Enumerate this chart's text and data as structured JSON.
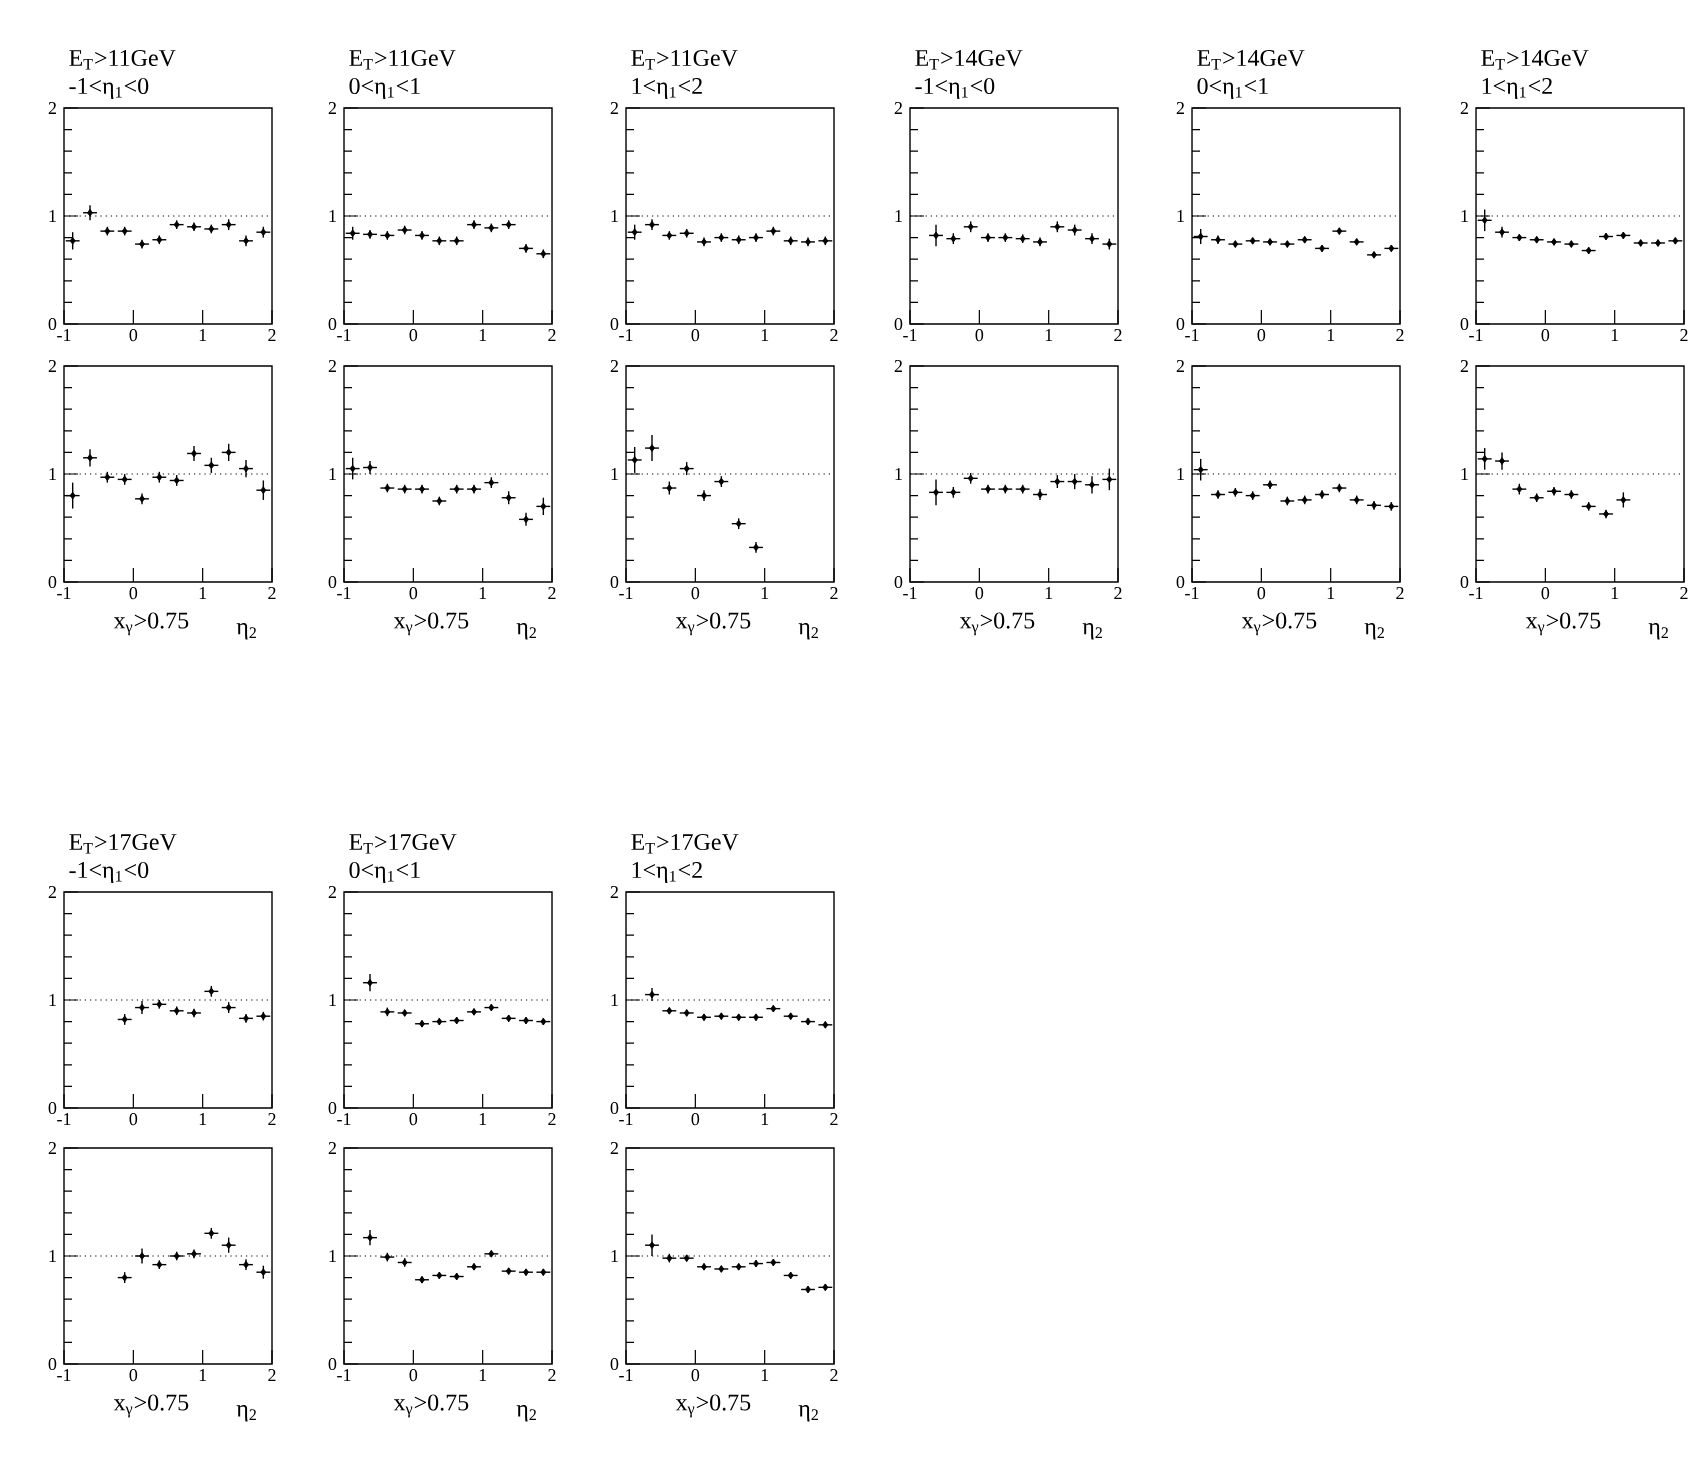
{
  "chart_data": [
    {
      "type": "scatter",
      "title": "E$_{T}$>11GeV",
      "subtitle": "-1<η$_{1}$<0",
      "x": [
        -0.875,
        -0.625,
        -0.375,
        -0.125,
        0.125,
        0.375,
        0.625,
        0.875,
        1.125,
        1.375,
        1.625,
        1.875
      ],
      "values": [
        0.77,
        1.03,
        0.86,
        0.86,
        0.74,
        0.78,
        0.92,
        0.9,
        0.88,
        0.92,
        0.77,
        0.85
      ],
      "errors": [
        0.08,
        0.07,
        0.04,
        0.04,
        0.04,
        0.04,
        0.04,
        0.04,
        0.04,
        0.05,
        0.05,
        0.05
      ],
      "xerrors": [
        0.1,
        0.1,
        0.1,
        0.1,
        0.1,
        0.1,
        0.1,
        0.1,
        0.1,
        0.1,
        0.1,
        0.1
      ],
      "xlim": [
        -1,
        2
      ],
      "ylim": [
        0,
        2
      ],
      "xticks": [
        -1,
        0,
        1,
        2
      ],
      "yticks": [
        0,
        1,
        2
      ],
      "color": "#000000",
      "marker": "diamond",
      "ref_lines": [
        {
          "axis": "y",
          "value": 1,
          "line_style": "dotted"
        }
      ]
    },
    {
      "type": "scatter",
      "title": "E$_{T}$>11GeV",
      "subtitle": "0<η$_{1}$<1",
      "x": [
        -0.875,
        -0.625,
        -0.375,
        -0.125,
        0.125,
        0.375,
        0.625,
        0.875,
        1.125,
        1.375,
        1.625,
        1.875
      ],
      "values": [
        0.84,
        0.83,
        0.82,
        0.87,
        0.82,
        0.77,
        0.77,
        0.92,
        0.89,
        0.92,
        0.7,
        0.65
      ],
      "errors": [
        0.06,
        0.04,
        0.04,
        0.04,
        0.04,
        0.04,
        0.04,
        0.04,
        0.04,
        0.04,
        0.04,
        0.04
      ],
      "xerrors": [
        0.1,
        0.1,
        0.1,
        0.1,
        0.1,
        0.1,
        0.1,
        0.1,
        0.1,
        0.1,
        0.1,
        0.1
      ],
      "xlim": [
        -1,
        2
      ],
      "ylim": [
        0,
        2
      ],
      "xticks": [
        -1,
        0,
        1,
        2
      ],
      "yticks": [
        0,
        1,
        2
      ],
      "color": "#000000",
      "marker": "diamond",
      "ref_lines": [
        {
          "axis": "y",
          "value": 1,
          "line_style": "dotted"
        }
      ]
    },
    {
      "type": "scatter",
      "title": "E$_{T}$>11GeV",
      "subtitle": "1<η$_{1}$<2",
      "x": [
        -0.875,
        -0.625,
        -0.375,
        -0.125,
        0.125,
        0.375,
        0.625,
        0.875,
        1.125,
        1.375,
        1.625,
        1.875
      ],
      "values": [
        0.85,
        0.92,
        0.82,
        0.84,
        0.76,
        0.8,
        0.78,
        0.8,
        0.86,
        0.77,
        0.76,
        0.77
      ],
      "errors": [
        0.07,
        0.05,
        0.04,
        0.04,
        0.04,
        0.04,
        0.04,
        0.04,
        0.04,
        0.04,
        0.04,
        0.04
      ],
      "xerrors": [
        0.1,
        0.1,
        0.1,
        0.1,
        0.1,
        0.1,
        0.1,
        0.1,
        0.1,
        0.1,
        0.1,
        0.1
      ],
      "xlim": [
        -1,
        2
      ],
      "ylim": [
        0,
        2
      ],
      "xticks": [
        -1,
        0,
        1,
        2
      ],
      "yticks": [
        0,
        1,
        2
      ],
      "color": "#000000",
      "marker": "diamond",
      "ref_lines": [
        {
          "axis": "y",
          "value": 1,
          "line_style": "dotted"
        }
      ]
    },
    {
      "type": "scatter",
      "title": "E$_{T}$>14GeV",
      "subtitle": "-1<η$_{1}$<0",
      "x": [
        -0.625,
        -0.375,
        -0.125,
        0.125,
        0.375,
        0.625,
        0.875,
        1.125,
        1.375,
        1.625,
        1.875
      ],
      "values": [
        0.82,
        0.79,
        0.9,
        0.8,
        0.8,
        0.79,
        0.76,
        0.9,
        0.87,
        0.79,
        0.74
      ],
      "errors": [
        0.1,
        0.05,
        0.05,
        0.04,
        0.04,
        0.04,
        0.04,
        0.05,
        0.05,
        0.05,
        0.05
      ],
      "xerrors": [
        0.1,
        0.1,
        0.1,
        0.1,
        0.1,
        0.1,
        0.1,
        0.1,
        0.1,
        0.1,
        0.1
      ],
      "xlim": [
        -1,
        2
      ],
      "ylim": [
        0,
        2
      ],
      "xticks": [
        -1,
        0,
        1,
        2
      ],
      "yticks": [
        0,
        1,
        2
      ],
      "color": "#000000",
      "marker": "diamond",
      "ref_lines": [
        {
          "axis": "y",
          "value": 1,
          "line_style": "dotted"
        }
      ]
    },
    {
      "type": "scatter",
      "title": "E$_{T}$>14GeV",
      "subtitle": "0<η$_{1}$<1",
      "x": [
        -0.875,
        -0.625,
        -0.375,
        -0.125,
        0.125,
        0.375,
        0.625,
        0.875,
        1.125,
        1.375,
        1.625,
        1.875
      ],
      "values": [
        0.81,
        0.78,
        0.74,
        0.77,
        0.76,
        0.74,
        0.78,
        0.7,
        0.86,
        0.76,
        0.64,
        0.7
      ],
      "errors": [
        0.07,
        0.04,
        0.03,
        0.03,
        0.03,
        0.03,
        0.03,
        0.03,
        0.03,
        0.03,
        0.03,
        0.03
      ],
      "xerrors": [
        0.1,
        0.1,
        0.1,
        0.1,
        0.1,
        0.1,
        0.1,
        0.1,
        0.1,
        0.1,
        0.1,
        0.1
      ],
      "xlim": [
        -1,
        2
      ],
      "ylim": [
        0,
        2
      ],
      "xticks": [
        -1,
        0,
        1,
        2
      ],
      "yticks": [
        0,
        1,
        2
      ],
      "color": "#000000",
      "marker": "diamond",
      "ref_lines": [
        {
          "axis": "y",
          "value": 1,
          "line_style": "dotted"
        }
      ]
    },
    {
      "type": "scatter",
      "title": "E$_{T}$>14GeV",
      "subtitle": "1<η$_{1}$<2",
      "x": [
        -0.875,
        -0.625,
        -0.375,
        -0.125,
        0.125,
        0.375,
        0.625,
        0.875,
        1.125,
        1.375,
        1.625,
        1.875
      ],
      "values": [
        0.96,
        0.85,
        0.8,
        0.78,
        0.76,
        0.74,
        0.68,
        0.81,
        0.82,
        0.75,
        0.75,
        0.77
      ],
      "errors": [
        0.1,
        0.05,
        0.03,
        0.03,
        0.03,
        0.03,
        0.03,
        0.03,
        0.03,
        0.03,
        0.03,
        0.03
      ],
      "xerrors": [
        0.1,
        0.1,
        0.1,
        0.1,
        0.1,
        0.1,
        0.1,
        0.1,
        0.1,
        0.1,
        0.1,
        0.1
      ],
      "xlim": [
        -1,
        2
      ],
      "ylim": [
        0,
        2
      ],
      "xticks": [
        -1,
        0,
        1,
        2
      ],
      "yticks": [
        0,
        1,
        2
      ],
      "color": "#000000",
      "marker": "diamond",
      "ref_lines": [
        {
          "axis": "y",
          "value": 1,
          "line_style": "dotted"
        }
      ]
    },
    {
      "type": "scatter",
      "xlabel": "η$_{2}$",
      "annotations": [
        "x$_{γ}$>0.75"
      ],
      "x": [
        -0.875,
        -0.625,
        -0.375,
        -0.125,
        0.125,
        0.375,
        0.625,
        0.875,
        1.125,
        1.375,
        1.625,
        1.875
      ],
      "values": [
        0.8,
        1.15,
        0.97,
        0.95,
        0.77,
        0.97,
        0.94,
        1.19,
        1.08,
        1.2,
        1.05,
        0.85
      ],
      "errors": [
        0.12,
        0.08,
        0.05,
        0.05,
        0.05,
        0.05,
        0.05,
        0.07,
        0.07,
        0.08,
        0.08,
        0.09
      ],
      "xerrors": [
        0.1,
        0.1,
        0.1,
        0.1,
        0.1,
        0.1,
        0.1,
        0.1,
        0.1,
        0.1,
        0.1,
        0.1
      ],
      "xlim": [
        -1,
        2
      ],
      "ylim": [
        0,
        2
      ],
      "xticks": [
        -1,
        0,
        1,
        2
      ],
      "yticks": [
        0,
        1,
        2
      ],
      "color": "#000000",
      "marker": "diamond",
      "ref_lines": [
        {
          "axis": "y",
          "value": 1,
          "line_style": "dotted"
        }
      ]
    },
    {
      "type": "scatter",
      "xlabel": "η$_{2}$",
      "annotations": [
        "x$_{γ}$>0.75"
      ],
      "x": [
        -0.875,
        -0.625,
        -0.375,
        -0.125,
        0.125,
        0.375,
        0.625,
        0.875,
        1.125,
        1.375,
        1.625,
        1.875
      ],
      "values": [
        1.05,
        1.06,
        0.87,
        0.86,
        0.86,
        0.75,
        0.86,
        0.86,
        0.92,
        0.78,
        0.58,
        0.7
      ],
      "errors": [
        0.1,
        0.06,
        0.04,
        0.04,
        0.04,
        0.04,
        0.04,
        0.04,
        0.05,
        0.06,
        0.06,
        0.08
      ],
      "xerrors": [
        0.1,
        0.1,
        0.1,
        0.1,
        0.1,
        0.1,
        0.1,
        0.1,
        0.1,
        0.1,
        0.1,
        0.1
      ],
      "xlim": [
        -1,
        2
      ],
      "ylim": [
        0,
        2
      ],
      "xticks": [
        -1,
        0,
        1,
        2
      ],
      "yticks": [
        0,
        1,
        2
      ],
      "color": "#000000",
      "marker": "diamond",
      "ref_lines": [
        {
          "axis": "y",
          "value": 1,
          "line_style": "dotted"
        }
      ]
    },
    {
      "type": "scatter",
      "xlabel": "η$_{2}$",
      "annotations": [
        "x$_{γ}$>0.75"
      ],
      "x": [
        -0.875,
        -0.625,
        -0.375,
        -0.125,
        0.125,
        0.375,
        0.625,
        0.875
      ],
      "values": [
        1.13,
        1.24,
        0.87,
        1.05,
        0.8,
        0.93,
        0.54,
        0.32
      ],
      "errors": [
        0.12,
        0.12,
        0.06,
        0.06,
        0.05,
        0.05,
        0.05,
        0.05
      ],
      "xerrors": [
        0.1,
        0.1,
        0.1,
        0.1,
        0.1,
        0.1,
        0.1,
        0.1
      ],
      "xlim": [
        -1,
        2
      ],
      "ylim": [
        0,
        2
      ],
      "xticks": [
        -1,
        0,
        1,
        2
      ],
      "yticks": [
        0,
        1,
        2
      ],
      "color": "#000000",
      "marker": "diamond",
      "ref_lines": [
        {
          "axis": "y",
          "value": 1,
          "line_style": "dotted"
        }
      ]
    },
    {
      "type": "scatter",
      "xlabel": "η$_{2}$",
      "annotations": [
        "x$_{γ}$>0.75"
      ],
      "x": [
        -0.625,
        -0.375,
        -0.125,
        0.125,
        0.375,
        0.625,
        0.875,
        1.125,
        1.375,
        1.625,
        1.875
      ],
      "values": [
        0.83,
        0.83,
        0.96,
        0.86,
        0.86,
        0.86,
        0.81,
        0.93,
        0.93,
        0.9,
        0.95
      ],
      "errors": [
        0.12,
        0.05,
        0.05,
        0.04,
        0.04,
        0.04,
        0.05,
        0.06,
        0.07,
        0.08,
        0.1
      ],
      "xerrors": [
        0.1,
        0.1,
        0.1,
        0.1,
        0.1,
        0.1,
        0.1,
        0.1,
        0.1,
        0.1,
        0.1
      ],
      "xlim": [
        -1,
        2
      ],
      "ylim": [
        0,
        2
      ],
      "xticks": [
        -1,
        0,
        1,
        2
      ],
      "yticks": [
        0,
        1,
        2
      ],
      "color": "#000000",
      "marker": "diamond",
      "ref_lines": [
        {
          "axis": "y",
          "value": 1,
          "line_style": "dotted"
        }
      ]
    },
    {
      "type": "scatter",
      "xlabel": "η$_{2}$",
      "annotations": [
        "x$_{γ}$>0.75"
      ],
      "x": [
        -0.875,
        -0.625,
        -0.375,
        -0.125,
        0.125,
        0.375,
        0.625,
        0.875,
        1.125,
        1.375,
        1.625,
        1.875
      ],
      "values": [
        1.04,
        0.81,
        0.83,
        0.8,
        0.9,
        0.75,
        0.76,
        0.81,
        0.87,
        0.76,
        0.71,
        0.7
      ],
      "errors": [
        0.1,
        0.04,
        0.04,
        0.04,
        0.04,
        0.04,
        0.04,
        0.04,
        0.04,
        0.04,
        0.04,
        0.04
      ],
      "xerrors": [
        0.1,
        0.1,
        0.1,
        0.1,
        0.1,
        0.1,
        0.1,
        0.1,
        0.1,
        0.1,
        0.1,
        0.1
      ],
      "xlim": [
        -1,
        2
      ],
      "ylim": [
        0,
        2
      ],
      "xticks": [
        -1,
        0,
        1,
        2
      ],
      "yticks": [
        0,
        1,
        2
      ],
      "color": "#000000",
      "marker": "diamond",
      "ref_lines": [
        {
          "axis": "y",
          "value": 1,
          "line_style": "dotted"
        }
      ]
    },
    {
      "type": "scatter",
      "xlabel": "η$_{2}$",
      "annotations": [
        "x$_{γ}$>0.75"
      ],
      "x": [
        -0.875,
        -0.625,
        -0.375,
        -0.125,
        0.125,
        0.375,
        0.625,
        0.875,
        1.125
      ],
      "values": [
        1.14,
        1.12,
        0.86,
        0.78,
        0.84,
        0.81,
        0.7,
        0.63,
        0.76
      ],
      "errors": [
        0.1,
        0.08,
        0.05,
        0.04,
        0.04,
        0.04,
        0.04,
        0.04,
        0.07
      ],
      "xerrors": [
        0.1,
        0.1,
        0.1,
        0.1,
        0.1,
        0.1,
        0.1,
        0.1,
        0.1
      ],
      "xlim": [
        -1,
        2
      ],
      "ylim": [
        0,
        2
      ],
      "xticks": [
        -1,
        0,
        1,
        2
      ],
      "yticks": [
        0,
        1,
        2
      ],
      "color": "#000000",
      "marker": "diamond",
      "ref_lines": [
        {
          "axis": "y",
          "value": 1,
          "line_style": "dotted"
        }
      ]
    },
    {
      "type": "scatter",
      "title": "E$_{T}$>17GeV",
      "subtitle": "-1<η$_{1}$<0",
      "x": [
        -0.125,
        0.125,
        0.375,
        0.625,
        0.875,
        1.125,
        1.375,
        1.625,
        1.875
      ],
      "values": [
        0.82,
        0.93,
        0.96,
        0.9,
        0.88,
        1.08,
        0.93,
        0.83,
        0.85
      ],
      "errors": [
        0.05,
        0.06,
        0.04,
        0.04,
        0.04,
        0.05,
        0.05,
        0.04,
        0.04
      ],
      "xerrors": [
        0.1,
        0.1,
        0.1,
        0.1,
        0.1,
        0.1,
        0.1,
        0.1,
        0.1
      ],
      "xlim": [
        -1,
        2
      ],
      "ylim": [
        0,
        2
      ],
      "xticks": [
        -1,
        0,
        1,
        2
      ],
      "yticks": [
        0,
        1,
        2
      ],
      "color": "#000000",
      "marker": "diamond",
      "ref_lines": [
        {
          "axis": "y",
          "value": 1,
          "line_style": "dotted"
        }
      ]
    },
    {
      "type": "scatter",
      "title": "E$_{T}$>17GeV",
      "subtitle": "0<η$_{1}$<1",
      "x": [
        -0.625,
        -0.375,
        -0.125,
        0.125,
        0.375,
        0.625,
        0.875,
        1.125,
        1.375,
        1.625,
        1.875
      ],
      "values": [
        1.16,
        0.89,
        0.88,
        0.78,
        0.8,
        0.81,
        0.89,
        0.93,
        0.83,
        0.81,
        0.8
      ],
      "errors": [
        0.08,
        0.04,
        0.03,
        0.03,
        0.03,
        0.03,
        0.03,
        0.03,
        0.03,
        0.03,
        0.03
      ],
      "xerrors": [
        0.1,
        0.1,
        0.1,
        0.1,
        0.1,
        0.1,
        0.1,
        0.1,
        0.1,
        0.1,
        0.1
      ],
      "xlim": [
        -1,
        2
      ],
      "ylim": [
        0,
        2
      ],
      "xticks": [
        -1,
        0,
        1,
        2
      ],
      "yticks": [
        0,
        1,
        2
      ],
      "color": "#000000",
      "marker": "diamond",
      "ref_lines": [
        {
          "axis": "y",
          "value": 1,
          "line_style": "dotted"
        }
      ]
    },
    {
      "type": "scatter",
      "title": "E$_{T}$>17GeV",
      "subtitle": "1<η$_{1}$<2",
      "x": [
        -0.625,
        -0.375,
        -0.125,
        0.125,
        0.375,
        0.625,
        0.875,
        1.125,
        1.375,
        1.625,
        1.875
      ],
      "values": [
        1.05,
        0.9,
        0.88,
        0.84,
        0.85,
        0.84,
        0.84,
        0.92,
        0.85,
        0.8,
        0.77
      ],
      "errors": [
        0.06,
        0.03,
        0.03,
        0.03,
        0.03,
        0.03,
        0.03,
        0.03,
        0.03,
        0.03,
        0.03
      ],
      "xerrors": [
        0.1,
        0.1,
        0.1,
        0.1,
        0.1,
        0.1,
        0.1,
        0.1,
        0.1,
        0.1,
        0.1
      ],
      "xlim": [
        -1,
        2
      ],
      "ylim": [
        0,
        2
      ],
      "xticks": [
        -1,
        0,
        1,
        2
      ],
      "yticks": [
        0,
        1,
        2
      ],
      "color": "#000000",
      "marker": "diamond",
      "ref_lines": [
        {
          "axis": "y",
          "value": 1,
          "line_style": "dotted"
        }
      ]
    },
    {
      "type": "scatter",
      "xlabel": "η$_{2}$",
      "annotations": [
        "x$_{γ}$>0.75"
      ],
      "x": [
        -0.125,
        0.125,
        0.375,
        0.625,
        0.875,
        1.125,
        1.375,
        1.625,
        1.875
      ],
      "values": [
        0.8,
        1.0,
        0.92,
        1.0,
        1.02,
        1.21,
        1.1,
        0.92,
        0.85
      ],
      "errors": [
        0.05,
        0.07,
        0.04,
        0.04,
        0.04,
        0.05,
        0.07,
        0.05,
        0.06
      ],
      "xerrors": [
        0.1,
        0.1,
        0.1,
        0.1,
        0.1,
        0.1,
        0.1,
        0.1,
        0.1
      ],
      "xlim": [
        -1,
        2
      ],
      "ylim": [
        0,
        2
      ],
      "xticks": [
        -1,
        0,
        1,
        2
      ],
      "yticks": [
        0,
        1,
        2
      ],
      "color": "#000000",
      "marker": "diamond",
      "ref_lines": [
        {
          "axis": "y",
          "value": 1,
          "line_style": "dotted"
        }
      ]
    },
    {
      "type": "scatter",
      "xlabel": "η$_{2}$",
      "annotations": [
        "x$_{γ}$>0.75"
      ],
      "x": [
        -0.625,
        -0.375,
        -0.125,
        0.125,
        0.375,
        0.625,
        0.875,
        1.125,
        1.375,
        1.625,
        1.875
      ],
      "values": [
        1.17,
        0.99,
        0.94,
        0.78,
        0.82,
        0.81,
        0.9,
        1.02,
        0.86,
        0.85,
        0.85
      ],
      "errors": [
        0.07,
        0.04,
        0.04,
        0.03,
        0.03,
        0.03,
        0.03,
        0.03,
        0.03,
        0.03,
        0.03
      ],
      "xerrors": [
        0.1,
        0.1,
        0.1,
        0.1,
        0.1,
        0.1,
        0.1,
        0.1,
        0.1,
        0.1,
        0.1
      ],
      "xlim": [
        -1,
        2
      ],
      "ylim": [
        0,
        2
      ],
      "xticks": [
        -1,
        0,
        1,
        2
      ],
      "yticks": [
        0,
        1,
        2
      ],
      "color": "#000000",
      "marker": "diamond",
      "ref_lines": [
        {
          "axis": "y",
          "value": 1,
          "line_style": "dotted"
        }
      ]
    },
    {
      "type": "scatter",
      "xlabel": "η$_{2}$",
      "annotations": [
        "x$_{γ}$>0.75"
      ],
      "x": [
        -0.625,
        -0.375,
        -0.125,
        0.125,
        0.375,
        0.625,
        0.875,
        1.125,
        1.375,
        1.625,
        1.875
      ],
      "values": [
        1.1,
        0.98,
        0.98,
        0.9,
        0.88,
        0.9,
        0.93,
        0.94,
        0.82,
        0.69,
        0.71
      ],
      "errors": [
        0.1,
        0.04,
        0.03,
        0.03,
        0.03,
        0.03,
        0.03,
        0.03,
        0.03,
        0.03,
        0.03
      ],
      "xerrors": [
        0.1,
        0.1,
        0.1,
        0.1,
        0.1,
        0.1,
        0.1,
        0.1,
        0.1,
        0.1,
        0.1
      ],
      "xlim": [
        -1,
        2
      ],
      "ylim": [
        0,
        2
      ],
      "xticks": [
        -1,
        0,
        1,
        2
      ],
      "yticks": [
        0,
        1,
        2
      ],
      "color": "#000000",
      "marker": "diamond",
      "ref_lines": [
        {
          "axis": "y",
          "value": 1,
          "line_style": "dotted"
        }
      ]
    }
  ]
}
